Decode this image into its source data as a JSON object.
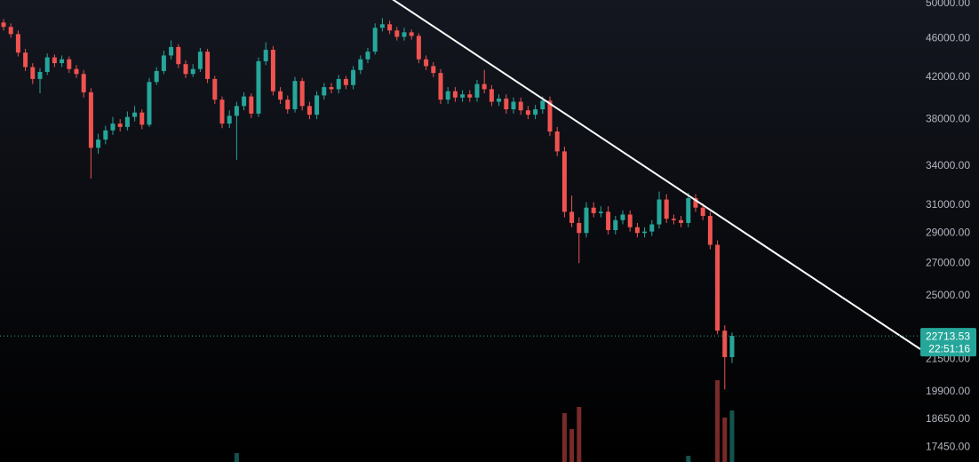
{
  "chart_data": {
    "type": "candlestick",
    "log_scale": true,
    "up_color": "#26a69a",
    "down_color": "#ef5350",
    "ylim": [
      16840,
      50420
    ],
    "yticks": [
      {
        "value": 50000,
        "label": "50000.00"
      },
      {
        "value": 46000,
        "label": "46000.00"
      },
      {
        "value": 42000,
        "label": "42000.00"
      },
      {
        "value": 38000,
        "label": "38000.00"
      },
      {
        "value": 34000,
        "label": "34000.00"
      },
      {
        "value": 31000,
        "label": "31000.00"
      },
      {
        "value": 29000,
        "label": "29000.00"
      },
      {
        "value": 27000,
        "label": "27000.00"
      },
      {
        "value": 25000,
        "label": "25000.00"
      },
      {
        "value": 21500,
        "label": "21500.00"
      },
      {
        "value": 19900,
        "label": "19900.00"
      },
      {
        "value": 18650,
        "label": "18650.00"
      },
      {
        "value": 17450,
        "label": "17450.00"
      }
    ],
    "countdown": "22:51:16",
    "vlim": [
      0,
      150
    ],
    "candles": [
      [
        47800,
        48200,
        46900,
        47300
      ],
      [
        47300,
        47700,
        46100,
        46500
      ],
      [
        46500,
        46900,
        44100,
        44500
      ],
      [
        44500,
        44900,
        42600,
        43000
      ],
      [
        43000,
        43400,
        41300,
        41800
      ],
      [
        41800,
        42900,
        40400,
        42500
      ],
      [
        42500,
        44400,
        42200,
        44000
      ],
      [
        44000,
        44300,
        43000,
        43400
      ],
      [
        43400,
        44200,
        43000,
        43800
      ],
      [
        43800,
        44100,
        42400,
        42800
      ],
      [
        42800,
        43200,
        41900,
        42300
      ],
      [
        42300,
        42700,
        40000,
        40500
      ],
      [
        40500,
        40900,
        33000,
        35500
      ],
      [
        35500,
        36700,
        35000,
        36200
      ],
      [
        36200,
        37400,
        35800,
        37000
      ],
      [
        37000,
        38200,
        36600,
        37600
      ],
      [
        37600,
        38000,
        36900,
        37300
      ],
      [
        37300,
        38700,
        37000,
        38200
      ],
      [
        38200,
        39200,
        37800,
        38600
      ],
      [
        38600,
        38900,
        37100,
        37500
      ],
      [
        37500,
        41900,
        37300,
        41500
      ],
      [
        41500,
        43000,
        41200,
        42600
      ],
      [
        42600,
        44700,
        42300,
        44200
      ],
      [
        44200,
        45800,
        43800,
        45100
      ],
      [
        45100,
        45400,
        42900,
        43300
      ],
      [
        43300,
        43700,
        41900,
        42300
      ],
      [
        42300,
        43300,
        42000,
        42800
      ],
      [
        42800,
        45000,
        42500,
        44600
      ],
      [
        44600,
        44900,
        41400,
        41800
      ],
      [
        41800,
        42100,
        39400,
        39800
      ],
      [
        39800,
        40100,
        37200,
        37600
      ],
      [
        37600,
        38800,
        37200,
        38300
      ],
      [
        38300,
        39600,
        34500,
        39200
      ],
      [
        39200,
        40500,
        38800,
        40100
      ],
      [
        40100,
        40400,
        38100,
        38500
      ],
      [
        38500,
        44000,
        38200,
        43600
      ],
      [
        43600,
        45600,
        43200,
        44800
      ],
      [
        44800,
        45200,
        40200,
        40600
      ],
      [
        40600,
        41000,
        39400,
        39800
      ],
      [
        39800,
        40200,
        38500,
        38900
      ],
      [
        38900,
        42000,
        38600,
        41600
      ],
      [
        41600,
        41900,
        38800,
        39200
      ],
      [
        39200,
        39600,
        38000,
        38400
      ],
      [
        38400,
        40600,
        38000,
        40200
      ],
      [
        40200,
        41400,
        39800,
        41000
      ],
      [
        41000,
        41400,
        40400,
        40800
      ],
      [
        40800,
        42200,
        40400,
        41800
      ],
      [
        41800,
        42100,
        40800,
        41200
      ],
      [
        41200,
        43100,
        40800,
        42700
      ],
      [
        42700,
        44200,
        42300,
        43800
      ],
      [
        43800,
        45000,
        43400,
        44600
      ],
      [
        44600,
        47700,
        44300,
        47200
      ],
      [
        47200,
        48300,
        46800,
        47600
      ],
      [
        47600,
        48000,
        46500,
        46900
      ],
      [
        46900,
        47300,
        45800,
        46200
      ],
      [
        46200,
        47200,
        45800,
        46700
      ],
      [
        46700,
        47000,
        45900,
        46300
      ],
      [
        46300,
        46600,
        43400,
        43800
      ],
      [
        43800,
        44200,
        42700,
        43100
      ],
      [
        43100,
        43500,
        42000,
        42400
      ],
      [
        42400,
        42800,
        39400,
        39800
      ],
      [
        39800,
        41000,
        39400,
        40600
      ],
      [
        40600,
        41000,
        39600,
        40000
      ],
      [
        40000,
        40700,
        39600,
        40300
      ],
      [
        40300,
        40700,
        39600,
        40000
      ],
      [
        40000,
        41700,
        39600,
        41300
      ],
      [
        41300,
        42700,
        40400,
        40800
      ],
      [
        40800,
        41200,
        39200,
        39600
      ],
      [
        39600,
        40300,
        39200,
        39900
      ],
      [
        39900,
        40300,
        38500,
        38900
      ],
      [
        38900,
        40000,
        38500,
        39600
      ],
      [
        39600,
        40000,
        38400,
        38800
      ],
      [
        38800,
        39200,
        38000,
        38400
      ],
      [
        38400,
        39300,
        38000,
        38900
      ],
      [
        38900,
        40100,
        38500,
        39700
      ],
      [
        39700,
        40100,
        36500,
        36900
      ],
      [
        36900,
        37300,
        34800,
        35200
      ],
      [
        35200,
        35600,
        30100,
        30500
      ],
      [
        30500,
        31700,
        29400,
        29700
      ],
      [
        29700,
        30100,
        27000,
        29000
      ],
      [
        29000,
        31200,
        28700,
        30800
      ],
      [
        30800,
        31200,
        30100,
        30400
      ],
      [
        30400,
        30900,
        30100,
        30500
      ],
      [
        30500,
        30900,
        28900,
        29200
      ],
      [
        29200,
        30200,
        28900,
        29900
      ],
      [
        29900,
        30600,
        29600,
        30300
      ],
      [
        30300,
        30600,
        29100,
        29400
      ],
      [
        29400,
        29700,
        28700,
        29000
      ],
      [
        29000,
        29400,
        28700,
        29100
      ],
      [
        29100,
        29900,
        28800,
        29600
      ],
      [
        29600,
        32000,
        29300,
        31400
      ],
      [
        31400,
        31800,
        29700,
        30000
      ],
      [
        30000,
        30300,
        29600,
        29900
      ],
      [
        29900,
        30200,
        29400,
        29700
      ],
      [
        29700,
        31900,
        29400,
        31500
      ],
      [
        31500,
        31800,
        30500,
        30800
      ],
      [
        30800,
        31100,
        29900,
        30200
      ],
      [
        30200,
        30500,
        27900,
        28200
      ],
      [
        28200,
        28500,
        22800,
        23000
      ],
      [
        23000,
        23300,
        20000,
        21600
      ],
      [
        21600,
        22900,
        21300,
        22713.53
      ]
    ],
    "volume": [
      0,
      0,
      0,
      0,
      0,
      0,
      0,
      0,
      0,
      0,
      0,
      0,
      0,
      0,
      0,
      0,
      0,
      0,
      0,
      0,
      0,
      0,
      0,
      0,
      0,
      0,
      0,
      0,
      0,
      0,
      0,
      0,
      10,
      0,
      0,
      0,
      0,
      0,
      0,
      0,
      0,
      0,
      0,
      0,
      0,
      0,
      0,
      0,
      0,
      0,
      0,
      0,
      0,
      0,
      0,
      0,
      0,
      0,
      0,
      0,
      0,
      0,
      0,
      0,
      0,
      0,
      0,
      0,
      0,
      0,
      0,
      0,
      0,
      0,
      0,
      0,
      0,
      55,
      37,
      62,
      0,
      0,
      0,
      0,
      0,
      0,
      0,
      0,
      0,
      0,
      0,
      0,
      0,
      0,
      7,
      0,
      0,
      0,
      92,
      50,
      58
    ]
  }
}
